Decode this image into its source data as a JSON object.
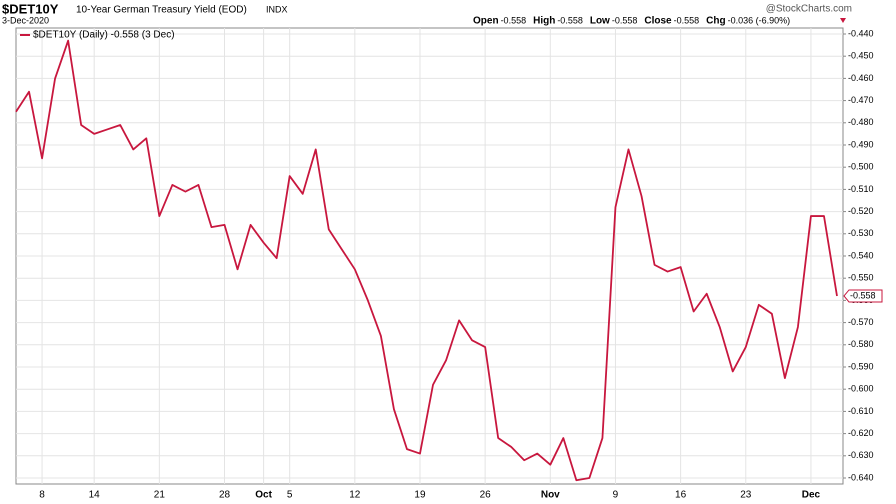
{
  "header": {
    "symbol": "$DET10Y",
    "name": "10-Year German Treasury Yield (EOD)",
    "exchange": "INDX",
    "date": "3-Dec-2020",
    "watermark": "@StockCharts.com",
    "quote": [
      {
        "label": "Open",
        "value": "-0.558"
      },
      {
        "label": "High",
        "value": "-0.558"
      },
      {
        "label": "Low",
        "value": "-0.558"
      },
      {
        "label": "Close",
        "value": "-0.558"
      },
      {
        "label": "Chg",
        "value": "-0.036 (-6.90%)"
      }
    ]
  },
  "chart_data": {
    "type": "line",
    "categories": [
      null,
      null,
      "8",
      null,
      null,
      null,
      "14",
      null,
      null,
      null,
      null,
      "21",
      null,
      null,
      null,
      null,
      "28",
      null,
      null,
      "Oct",
      null,
      "5",
      null,
      null,
      null,
      null,
      "12",
      null,
      null,
      null,
      null,
      "19",
      null,
      null,
      null,
      null,
      "26",
      null,
      null,
      null,
      null,
      "Nov",
      null,
      null,
      null,
      null,
      "9",
      null,
      null,
      null,
      null,
      "16",
      null,
      null,
      null,
      null,
      "23",
      null,
      null,
      null,
      null,
      "Dec",
      null,
      null
    ],
    "series": [
      {
        "name": "$DET10Y (Daily) -0.558 (3 Dec)",
        "color": "#c8173e",
        "values": [
          -0.475,
          -0.466,
          -0.496,
          -0.46,
          -0.443,
          -0.481,
          -0.485,
          -0.483,
          -0.481,
          -0.492,
          -0.487,
          -0.522,
          -0.508,
          -0.511,
          -0.508,
          -0.527,
          -0.526,
          -0.546,
          -0.526,
          -0.534,
          -0.541,
          -0.504,
          -0.512,
          -0.492,
          -0.528,
          -0.537,
          -0.546,
          -0.56,
          -0.576,
          -0.609,
          -0.627,
          -0.629,
          -0.598,
          -0.587,
          -0.569,
          -0.578,
          -0.581,
          -0.622,
          -0.626,
          -0.632,
          -0.629,
          -0.634,
          -0.622,
          -0.641,
          -0.64,
          -0.622,
          -0.518,
          -0.492,
          -0.513,
          -0.544,
          -0.547,
          -0.545,
          -0.565,
          -0.557,
          -0.572,
          -0.592,
          -0.581,
          -0.562,
          -0.566,
          -0.595,
          -0.572,
          -0.522,
          -0.522,
          -0.558
        ]
      }
    ],
    "ylim": [
      -0.6427,
      -0.4373
    ],
    "yticks": [
      {
        "value": -0.44,
        "label": "-0.440"
      },
      {
        "value": -0.45,
        "label": "-0.450"
      },
      {
        "value": -0.46,
        "label": "-0.460"
      },
      {
        "value": -0.47,
        "label": "-0.470"
      },
      {
        "value": -0.48,
        "label": "-0.480"
      },
      {
        "value": -0.49,
        "label": "-0.490"
      },
      {
        "value": -0.5,
        "label": "-0.500"
      },
      {
        "value": -0.51,
        "label": "-0.510"
      },
      {
        "value": -0.52,
        "label": "-0.520"
      },
      {
        "value": -0.53,
        "label": "-0.530"
      },
      {
        "value": -0.54,
        "label": "-0.540"
      },
      {
        "value": -0.55,
        "label": "-0.550"
      },
      {
        "value": -0.56,
        "label": "-0.560"
      },
      {
        "value": -0.57,
        "label": "-0.570"
      },
      {
        "value": -0.58,
        "label": "-0.580"
      },
      {
        "value": -0.59,
        "label": "-0.590"
      },
      {
        "value": -0.6,
        "label": "-0.600"
      },
      {
        "value": -0.61,
        "label": "-0.610"
      },
      {
        "value": -0.62,
        "label": "-0.620"
      },
      {
        "value": -0.63,
        "label": "-0.630"
      },
      {
        "value": -0.64,
        "label": "-0.640"
      }
    ],
    "grid": true
  }
}
